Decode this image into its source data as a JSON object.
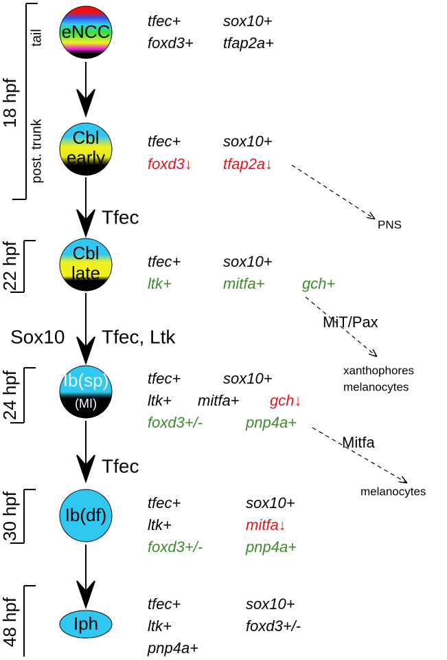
{
  "time_labels": [
    "18 hpf",
    "22 hpf",
    "24 hpf",
    "30 hpf",
    "48 hpf"
  ],
  "regions": [
    "tail",
    "post. trunk"
  ],
  "nodes": [
    {
      "lines": [
        "eNCC"
      ]
    },
    {
      "lines": [
        "Cbl",
        "early"
      ]
    },
    {
      "lines": [
        "Cbl",
        "late"
      ]
    },
    {
      "lines": [
        "Ib(sp)",
        "(MI)"
      ]
    },
    {
      "lines": [
        "Ib(df)"
      ]
    },
    {
      "lines": [
        "Iph"
      ]
    }
  ],
  "genes": [
    [
      {
        "text": "tfec+",
        "color": "#000000"
      },
      {
        "text": "sox10+",
        "color": "#000000"
      },
      {
        "text": "foxd3+",
        "color": "#000000"
      },
      {
        "text": "tfap2a+",
        "color": "#000000"
      }
    ],
    [
      {
        "text": "tfec+",
        "color": "#000000"
      },
      {
        "text": "sox10+",
        "color": "#000000"
      },
      {
        "text": "foxd3↓",
        "color": "#e8141b"
      },
      {
        "text": "tfap2a↓",
        "color": "#e8141b"
      }
    ],
    [
      {
        "text": "tfec+",
        "color": "#000000"
      },
      {
        "text": "sox10+",
        "color": "#000000"
      },
      {
        "text": "ltk+",
        "color": "#3d8b2a"
      },
      {
        "text": "mitfa+",
        "color": "#3d8b2a"
      },
      {
        "text": "gch+",
        "color": "#3d8b2a"
      }
    ],
    [
      {
        "text": "tfec+",
        "color": "#000000"
      },
      {
        "text": "sox10+",
        "color": "#000000"
      },
      {
        "text": "ltk+",
        "color": "#000000"
      },
      {
        "text": "mitfa+",
        "color": "#000000"
      },
      {
        "text": "gch↓",
        "color": "#e8141b"
      },
      {
        "text": "foxd3+/-",
        "color": "#3d8b2a"
      },
      {
        "text": "pnp4a+",
        "color": "#3d8b2a"
      }
    ],
    [
      {
        "text": "tfec+",
        "color": "#000000"
      },
      {
        "text": "sox10+",
        "color": "#000000"
      },
      {
        "text": "ltk+",
        "color": "#000000"
      },
      {
        "text": "mitfa↓",
        "color": "#e8141b"
      },
      {
        "text": "foxd3+/-",
        "color": "#3d8b2a"
      },
      {
        "text": "pnp4a+",
        "color": "#3d8b2a"
      }
    ],
    [
      {
        "text": "tfec+",
        "color": "#000000"
      },
      {
        "text": "sox10+",
        "color": "#000000"
      },
      {
        "text": "ltk+",
        "color": "#000000"
      },
      {
        "text": "foxd3+/-",
        "color": "#000000"
      },
      {
        "text": "pnp4a+",
        "color": "#000000"
      }
    ]
  ],
  "transitions": [
    "Tfec",
    "Sox10",
    "Tfec, Ltk",
    "Tfec"
  ],
  "branches": [
    {
      "label": null,
      "targets": [
        "PNS"
      ]
    },
    {
      "label": "MiT/Pax",
      "targets": [
        "xanthophores",
        "melanocytes"
      ]
    },
    {
      "label": "Mitfa",
      "targets": [
        "melanocytes"
      ]
    }
  ]
}
